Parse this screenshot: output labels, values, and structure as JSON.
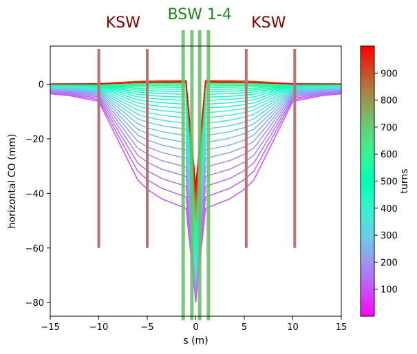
{
  "chart_data": {
    "type": "line",
    "xlabel": "s (m)",
    "ylabel": "horizontal CO (mm)",
    "xlim": [
      -15,
      15
    ],
    "ylim": [
      -85,
      14
    ],
    "xticks": [
      -15,
      -10,
      -5,
      0,
      5,
      10,
      15
    ],
    "yticks": [
      0,
      -20,
      -40,
      -60,
      -80
    ],
    "grid": false,
    "annotations": [
      {
        "text": "KSW",
        "x": -7.5,
        "color": "#800000"
      },
      {
        "text": "BSW 1-4",
        "x": 0.4,
        "color": "#1a8a1a"
      },
      {
        "text": "KSW",
        "x": 7.5,
        "color": "#800000"
      }
    ],
    "ksw_kickers": {
      "s": [
        -10,
        -5,
        5.2,
        10.2
      ],
      "y_from": -60,
      "y_to": 13,
      "color": "#b77474"
    },
    "bsw_bumpers": {
      "s": [
        -1.3,
        -0.4,
        0.4,
        1.3
      ],
      "color": "#6fbf6f"
    },
    "colorbar": {
      "label": "turns",
      "min": 0,
      "max": 1000,
      "ticks": [
        100,
        200,
        300,
        400,
        500,
        600,
        700,
        800,
        900
      ],
      "colormap": "rainbow"
    },
    "orbit_shape": {
      "s": [
        -15,
        -13,
        -10,
        -6,
        -5,
        -3.5,
        -1,
        0,
        1,
        3.5,
        5,
        6,
        10,
        13,
        15
      ],
      "inner_amplitude": [
        0.1,
        0.12,
        0.18,
        1.0,
        1.1,
        1.2,
        1.3,
        0,
        1.3,
        1.2,
        1.1,
        1.0,
        0.18,
        0.12,
        0.1
      ],
      "center_min_mm": -80,
      "outer_max_mm": 10,
      "outer_min_mm": -35,
      "final_center_mm": -37,
      "num_curves": 40
    }
  }
}
